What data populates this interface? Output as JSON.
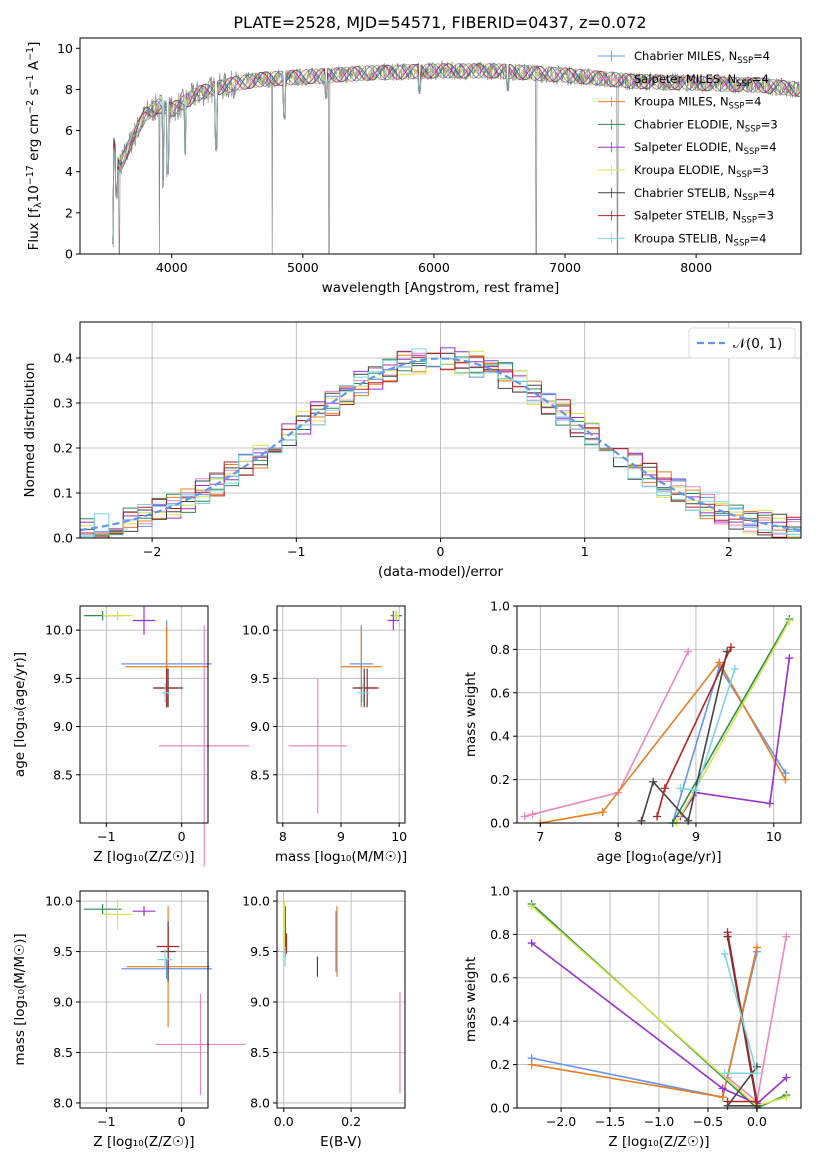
{
  "title": "PLATE=2528, MJD=54571, FIBERID=0437, z=0.072",
  "models": [
    {
      "name": "Chabrier MILES",
      "nssp": "4",
      "color": "#6495ed"
    },
    {
      "name": "Salpeter MILES",
      "nssp": "4",
      "color": "#e987bf"
    },
    {
      "name": "Kroupa MILES",
      "nssp": "4",
      "color": "#e87d22"
    },
    {
      "name": "Chabrier ELODIE",
      "nssp": "3",
      "color": "#2e8b57"
    },
    {
      "name": "Salpeter ELODIE",
      "nssp": "4",
      "color": "#9932cc"
    },
    {
      "name": "Kroupa ELODIE",
      "nssp": "3",
      "color": "#d6e64b"
    },
    {
      "name": "Chabrier STELIB",
      "nssp": "4",
      "color": "#444444"
    },
    {
      "name": "Salpeter STELIB",
      "nssp": "3",
      "color": "#b22222"
    },
    {
      "name": "Kroupa STELIB",
      "nssp": "4",
      "color": "#7ed6df"
    }
  ],
  "nssp_label": "N",
  "nssp_sub": "SSP",
  "chart_data": [
    {
      "id": "spectrum",
      "type": "line",
      "xlabel": "wavelength [Angstrom, rest frame]",
      "ylabel": "Flux [f_λ 10^-17 erg cm^-2 s^-1 A^-1]",
      "ylabel_parts": [
        "Flux [f",
        "λ",
        "10",
        "−17",
        " erg cm",
        "−2",
        " s",
        "−1",
        " A",
        "−1",
        "]"
      ],
      "xlim": [
        3300,
        8800
      ],
      "ylim": [
        0,
        10.5
      ],
      "xticks": [
        "4000",
        "5000",
        "6000",
        "7000",
        "8000"
      ],
      "yticks": [
        "0",
        "2",
        "4",
        "6",
        "8",
        "10"
      ],
      "data_color": "#888888",
      "continuum": [
        [
          3550,
          5.5
        ],
        [
          3600,
          4.2
        ],
        [
          3700,
          5.6
        ],
        [
          3800,
          6.8
        ],
        [
          3900,
          7.2
        ],
        [
          4000,
          7.0
        ],
        [
          4100,
          7.4
        ],
        [
          4200,
          7.8
        ],
        [
          4300,
          8.0
        ],
        [
          4500,
          8.3
        ],
        [
          4700,
          8.5
        ],
        [
          5000,
          8.6
        ],
        [
          5500,
          8.8
        ],
        [
          6000,
          8.9
        ],
        [
          6500,
          8.9
        ],
        [
          7000,
          8.7
        ],
        [
          7500,
          8.4
        ],
        [
          8000,
          8.3
        ],
        [
          8500,
          8.2
        ],
        [
          8790,
          8.0
        ]
      ],
      "absorption_lines": [
        [
          3550,
          0.2
        ],
        [
          3580,
          2.5
        ],
        [
          3934,
          3.2
        ],
        [
          3968,
          3.6
        ],
        [
          4102,
          4.6
        ],
        [
          4340,
          5.0
        ],
        [
          4861,
          6.4
        ],
        [
          5175,
          7.3
        ],
        [
          5890,
          7.5
        ],
        [
          6563,
          7.8
        ]
      ],
      "spikes_down": [
        [
          3600,
          0.0
        ],
        [
          3905,
          0.0
        ],
        [
          4765,
          0.0
        ],
        [
          5200,
          0.0
        ],
        [
          6780,
          0.0
        ],
        [
          7400,
          0.0
        ]
      ]
    },
    {
      "id": "residuals",
      "type": "line",
      "xlabel": "(data-model)/error",
      "ylabel": "Normed distribution",
      "xlim": [
        -2.5,
        2.5
      ],
      "ylim": [
        0,
        0.48
      ],
      "xticks": [
        "−2",
        "−1",
        "0",
        "1",
        "2"
      ],
      "xtick_values": [
        -2,
        -1,
        0,
        1,
        2
      ],
      "yticks": [
        "0.0",
        "0.1",
        "0.2",
        "0.3",
        "0.4"
      ],
      "ytick_values": [
        0,
        0.1,
        0.2,
        0.3,
        0.4
      ],
      "grid": true,
      "legend_label": "𝒩(0, 1)",
      "legend_position": "top-right",
      "gaussian": {
        "mean": 0,
        "sigma": 1
      },
      "bin_width": 0.1
    },
    {
      "id": "age-vs-Z",
      "type": "scatter",
      "xlabel": "Z [log₁₀(Z/Z☉)]",
      "ylabel": "age  [log₁₀(age/yr)]",
      "xlim": [
        -1.35,
        0.35
      ],
      "ylim": [
        8.0,
        10.25
      ],
      "xticks": [
        "−1",
        "0"
      ],
      "xtick_values": [
        -1,
        0
      ],
      "yticks": [
        "8.5",
        "9.0",
        "9.5",
        "10.0"
      ],
      "ytick_values": [
        8.5,
        9.0,
        9.5,
        10.0
      ],
      "grid": true,
      "points": [
        {
          "model": 0,
          "x": -0.2,
          "y": 9.65,
          "xerr": 0.6,
          "yerr": 0.45
        },
        {
          "model": 1,
          "x": 0.3,
          "y": 8.8,
          "xerr": 0.6,
          "yerr": 1.25
        },
        {
          "model": 2,
          "x": -0.2,
          "y": 9.62,
          "xerr": 0.55,
          "yerr": 0.42
        },
        {
          "model": 3,
          "x": -1.05,
          "y": 10.15,
          "xerr": 0.25,
          "yerr": 0.05
        },
        {
          "model": 4,
          "x": -0.5,
          "y": 10.1,
          "xerr": 0.15,
          "yerr": 0.15
        },
        {
          "model": 5,
          "x": -0.85,
          "y": 10.15,
          "xerr": 0.2,
          "yerr": 0.05
        },
        {
          "model": 6,
          "x": -0.18,
          "y": 9.4,
          "xerr": 0.2,
          "yerr": 0.2
        },
        {
          "model": 7,
          "x": -0.2,
          "y": 9.4,
          "xerr": 0.15,
          "yerr": 0.2
        },
        {
          "model": 8,
          "x": -0.22,
          "y": 9.35,
          "xerr": 0.05,
          "yerr": 0.1
        }
      ]
    },
    {
      "id": "age-vs-mass",
      "type": "scatter",
      "xlabel": "mass [log₁₀(M/M☉)]",
      "ylabel": "",
      "xlim": [
        7.9,
        10.1
      ],
      "ylim": [
        8.0,
        10.25
      ],
      "xticks": [
        "8",
        "9",
        "10"
      ],
      "xtick_values": [
        8,
        9,
        10
      ],
      "yticks": [
        "8.5",
        "9.0",
        "9.5",
        "10.0"
      ],
      "ytick_values": [
        8.5,
        9.0,
        9.5,
        10.0
      ],
      "grid": true,
      "points": [
        {
          "model": 0,
          "x": 9.35,
          "y": 9.65,
          "xerr": 0.2,
          "yerr": 0.4
        },
        {
          "model": 1,
          "x": 8.6,
          "y": 8.8,
          "xerr": 0.5,
          "yerr": 0.7
        },
        {
          "model": 2,
          "x": 9.35,
          "y": 9.62,
          "xerr": 0.35,
          "yerr": 0.42
        },
        {
          "model": 3,
          "x": 9.95,
          "y": 10.15,
          "xerr": 0.1,
          "yerr": 0.05
        },
        {
          "model": 4,
          "x": 9.9,
          "y": 10.1,
          "xerr": 0.1,
          "yerr": 0.1
        },
        {
          "model": 5,
          "x": 9.95,
          "y": 10.15,
          "xerr": 0.05,
          "yerr": 0.05
        },
        {
          "model": 6,
          "x": 9.4,
          "y": 9.4,
          "xerr": 0.2,
          "yerr": 0.2
        },
        {
          "model": 7,
          "x": 9.45,
          "y": 9.4,
          "xerr": 0.2,
          "yerr": 0.2
        },
        {
          "model": 8,
          "x": 9.38,
          "y": 9.35,
          "xerr": 0.1,
          "yerr": 0.1
        }
      ]
    },
    {
      "id": "mass-weight-vs-age",
      "type": "line",
      "xlabel": "age  [log₁₀(age/yr)]",
      "ylabel": "mass weight",
      "xlim": [
        6.7,
        10.35
      ],
      "ylim": [
        0,
        1.0
      ],
      "xticks": [
        "7",
        "8",
        "9",
        "10"
      ],
      "xtick_values": [
        7,
        8,
        9,
        10
      ],
      "yticks": [
        "0.0",
        "0.2",
        "0.4",
        "0.6",
        "0.8",
        "1.0"
      ],
      "ytick_values": [
        0,
        0.2,
        0.4,
        0.6,
        0.8,
        1.0
      ],
      "grid": true,
      "series": [
        {
          "model": 0,
          "x": [
            8.7,
            9.3,
            10.15
          ],
          "y": [
            0.0,
            0.72,
            0.23
          ]
        },
        {
          "model": 1,
          "x": [
            6.8,
            6.9,
            8.0,
            8.9
          ],
          "y": [
            0.03,
            0.04,
            0.14,
            0.79
          ]
        },
        {
          "model": 2,
          "x": [
            7.0,
            7.8,
            9.3,
            10.15
          ],
          "y": [
            0.0,
            0.05,
            0.74,
            0.2
          ]
        },
        {
          "model": 3,
          "x": [
            8.7,
            10.2
          ],
          "y": [
            0.0,
            0.94
          ]
        },
        {
          "model": 4,
          "x": [
            8.8,
            9.0,
            9.95,
            10.2
          ],
          "y": [
            0.03,
            0.14,
            0.09,
            0.76
          ]
        },
        {
          "model": 5,
          "x": [
            8.75,
            10.2
          ],
          "y": [
            0.0,
            0.93
          ]
        },
        {
          "model": 6,
          "x": [
            8.3,
            8.45,
            8.9,
            9.4
          ],
          "y": [
            0.01,
            0.19,
            0.01,
            0.79
          ]
        },
        {
          "model": 7,
          "x": [
            8.5,
            8.6,
            9.45
          ],
          "y": [
            0.03,
            0.16,
            0.81
          ]
        },
        {
          "model": 8,
          "x": [
            8.8,
            9.0,
            9.5
          ],
          "y": [
            0.16,
            0.15,
            0.71
          ]
        }
      ]
    },
    {
      "id": "mass-vs-Z",
      "type": "scatter",
      "xlabel": "Z [log₁₀(Z/Z☉)]",
      "ylabel": "mass [log₁₀(M/M☉)]",
      "xlim": [
        -1.35,
        0.35
      ],
      "ylim": [
        7.95,
        10.1
      ],
      "xticks": [
        "−1",
        "0"
      ],
      "xtick_values": [
        -1,
        0
      ],
      "yticks": [
        "8.0",
        "8.5",
        "9.0",
        "9.5",
        "10.0"
      ],
      "ytick_values": [
        8,
        8.5,
        9,
        9.5,
        10
      ],
      "grid": true,
      "points": [
        {
          "model": 0,
          "x": -0.2,
          "y": 9.33,
          "xerr": 0.6,
          "yerr": 0.1
        },
        {
          "model": 1,
          "x": 0.25,
          "y": 8.58,
          "xerr": 0.6,
          "yerr": 0.5
        },
        {
          "model": 2,
          "x": -0.18,
          "y": 9.35,
          "xerr": 0.55,
          "yerr": 0.6
        },
        {
          "model": 3,
          "x": -1.05,
          "y": 9.92,
          "xerr": 0.25,
          "yerr": 0.05
        },
        {
          "model": 4,
          "x": -0.5,
          "y": 9.9,
          "xerr": 0.15,
          "yerr": 0.05
        },
        {
          "model": 5,
          "x": -0.85,
          "y": 9.87,
          "xerr": 0.2,
          "yerr": 0.15
        },
        {
          "model": 6,
          "x": -0.18,
          "y": 9.5,
          "xerr": 0.1,
          "yerr": 0.3
        },
        {
          "model": 7,
          "x": -0.18,
          "y": 9.55,
          "xerr": 0.15,
          "yerr": 0.2
        },
        {
          "model": 8,
          "x": -0.22,
          "y": 9.42,
          "xerr": 0.1,
          "yerr": 0.1
        }
      ]
    },
    {
      "id": "mass-vs-EBV",
      "type": "scatter",
      "xlabel": "E(B-V)",
      "ylabel": "",
      "xlim": [
        -0.02,
        0.36
      ],
      "ylim": [
        7.95,
        10.1
      ],
      "xticks": [
        "0.0",
        "0.2"
      ],
      "xtick_values": [
        0,
        0.2
      ],
      "yticks": [
        "8.0",
        "8.5",
        "9.0",
        "9.5",
        "10.0"
      ],
      "ytick_values": [
        8,
        8.5,
        9,
        9.5,
        10
      ],
      "grid": true,
      "points": [
        {
          "model": 0,
          "x": 0.155,
          "y": 9.6,
          "xerr": 0,
          "yerr": 0.3
        },
        {
          "model": 1,
          "x": 0.345,
          "y": 8.6,
          "xerr": 0,
          "yerr": 0.5
        },
        {
          "model": 2,
          "x": 0.158,
          "y": 9.6,
          "xerr": 0,
          "yerr": 0.35
        },
        {
          "model": 3,
          "x": 0.005,
          "y": 9.75,
          "xerr": 0,
          "yerr": 0.2
        },
        {
          "model": 4,
          "x": 0.005,
          "y": 9.6,
          "xerr": 0,
          "yerr": 0.15
        },
        {
          "model": 5,
          "x": 0.002,
          "y": 9.75,
          "xerr": 0,
          "yerr": 0.25
        },
        {
          "model": 6,
          "x": 0.1,
          "y": 9.35,
          "xerr": 0,
          "yerr": 0.1
        },
        {
          "model": 7,
          "x": 0.008,
          "y": 9.58,
          "xerr": 0,
          "yerr": 0.1
        },
        {
          "model": 8,
          "x": 0.004,
          "y": 9.45,
          "xerr": 0,
          "yerr": 0.1
        }
      ]
    },
    {
      "id": "mass-weight-vs-Z",
      "type": "line",
      "xlabel": "Z [log₁₀(Z/Z☉)]",
      "ylabel": "mass weight",
      "xlim": [
        -2.45,
        0.45
      ],
      "ylim": [
        0,
        1.0
      ],
      "xticks": [
        "−2.0",
        "−1.5",
        "−1.0",
        "−0.5",
        "0.0"
      ],
      "xtick_values": [
        -2,
        -1.5,
        -1,
        -0.5,
        0
      ],
      "yticks": [
        "0.0",
        "0.2",
        "0.4",
        "0.6",
        "0.8",
        "1.0"
      ],
      "ytick_values": [
        0,
        0.2,
        0.4,
        0.6,
        0.8,
        1.0
      ],
      "grid": true,
      "series": [
        {
          "model": 0,
          "x": [
            -2.3,
            -0.35,
            0.0
          ],
          "y": [
            0.23,
            0.05,
            0.72
          ]
        },
        {
          "model": 1,
          "x": [
            -0.3,
            0.0,
            0.3
          ],
          "y": [
            0.14,
            0.03,
            0.79
          ]
        },
        {
          "model": 2,
          "x": [
            -2.3,
            -0.35,
            0.0
          ],
          "y": [
            0.2,
            0.05,
            0.74
          ]
        },
        {
          "model": 3,
          "x": [
            -2.3,
            0.0,
            0.3
          ],
          "y": [
            0.94,
            0.0,
            0.06
          ]
        },
        {
          "model": 4,
          "x": [
            -2.3,
            -0.35,
            0.0,
            0.3
          ],
          "y": [
            0.76,
            0.09,
            0.02,
            0.14
          ]
        },
        {
          "model": 5,
          "x": [
            -2.3,
            0.0,
            0.3
          ],
          "y": [
            0.93,
            0.01,
            0.05
          ]
        },
        {
          "model": 6,
          "x": [
            -0.3,
            0.0,
            -0.3,
            0.0
          ],
          "y": [
            0.79,
            0.01,
            0.01,
            0.19
          ]
        },
        {
          "model": 7,
          "x": [
            -0.3,
            0.0,
            -0.3
          ],
          "y": [
            0.81,
            0.03,
            0.03
          ]
        },
        {
          "model": 8,
          "x": [
            -0.33,
            0.0,
            -0.33
          ],
          "y": [
            0.71,
            0.16,
            0.16
          ]
        }
      ]
    }
  ]
}
